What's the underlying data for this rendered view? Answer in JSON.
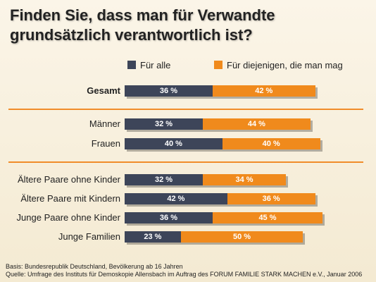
{
  "chart_data": {
    "type": "bar",
    "orientation": "horizontal",
    "stacked": true,
    "title": "Finden Sie, dass man für Verwandte grundsätzlich verantwortlich ist?",
    "title_lines": [
      "Finden Sie, dass man für Verwandte",
      "grundsätzlich verantwortlich ist?"
    ],
    "categories": [
      "Gesamt",
      "Männer",
      "Frauen",
      "Ältere Paare ohne Kinder",
      "Ältere Paare mit Kindern",
      "Junge Paare ohne Kinder",
      "Junge Familien"
    ],
    "category_groups": [
      [
        "Gesamt"
      ],
      [
        "Männer",
        "Frauen"
      ],
      [
        "Ältere Paare ohne Kinder",
        "Ältere Paare mit Kindern",
        "Junge Paare ohne Kinder",
        "Junge Familien"
      ]
    ],
    "emphasized_category": "Gesamt",
    "series": [
      {
        "name": "Für alle",
        "color": "#3d4559",
        "values": [
          36,
          32,
          40,
          32,
          42,
          36,
          23
        ],
        "labels": [
          "36 %",
          "32 %",
          "40 %",
          "32 %",
          "42 %",
          "36 %",
          "23 %"
        ]
      },
      {
        "name": "Für diejenigen, die man mag",
        "color": "#f08a1c",
        "values": [
          42,
          44,
          40,
          34,
          36,
          45,
          50
        ],
        "labels": [
          "42 %",
          "44 %",
          "40 %",
          "34 %",
          "36 %",
          "45 %",
          "50 %"
        ]
      }
    ],
    "unit": "%",
    "legend_position": "top",
    "grid": false,
    "xlim": [
      0,
      100
    ]
  },
  "footer": {
    "basis": "Basis: Bundesrepublik Deutschland, Bevölkerung ab 16 Jahren",
    "source": "Quelle: Umfrage des Instituts für Demoskopie Allensbach im Auftrag des FORUM FAMILIE STARK MACHEN e.V., Januar 2006"
  },
  "colors": {
    "accent_orange": "#f08a1c",
    "navy": "#3d4559",
    "separator": "#f08c2a"
  }
}
